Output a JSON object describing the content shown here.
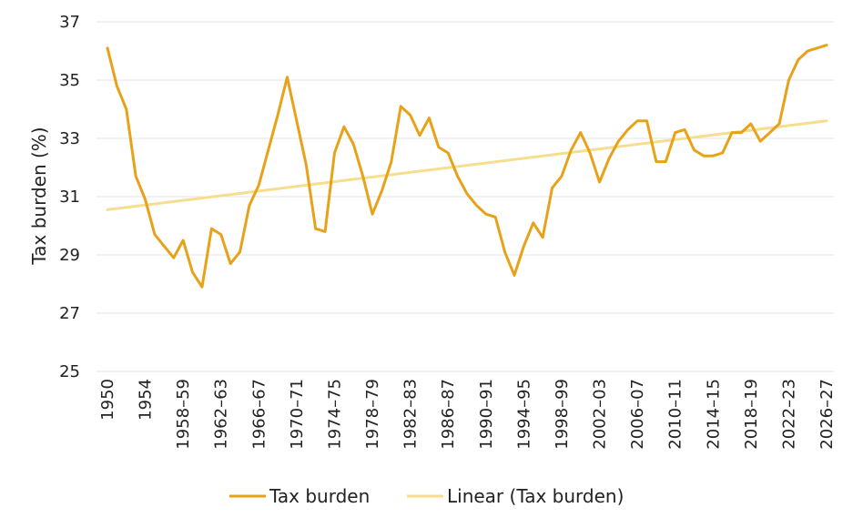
{
  "chart_data": {
    "type": "line",
    "title": "",
    "xlabel": "",
    "ylabel": "Tax burden (%)",
    "ylim": [
      25,
      37
    ],
    "yticks": [
      25,
      27,
      29,
      31,
      33,
      35,
      37
    ],
    "grid": true,
    "legend_position": "bottom",
    "x_tick_labels": [
      "1950",
      "1954",
      "1958–59",
      "1962–63",
      "1966–67",
      "1970–71",
      "1974–75",
      "1978–79",
      "1982–83",
      "1986–87",
      "1990–91",
      "1994–95",
      "1998–99",
      "2002–03",
      "2006–07",
      "2010–11",
      "2014–15",
      "2018–19",
      "2022–23",
      "2026–27"
    ],
    "x_tick_indices": [
      0,
      4,
      8,
      12,
      16,
      20,
      24,
      28,
      32,
      36,
      40,
      44,
      48,
      52,
      56,
      60,
      64,
      68,
      72,
      76
    ],
    "x_count": 77,
    "series": [
      {
        "name": "Tax burden",
        "color": "#E8A21A",
        "values": [
          36.1,
          34.8,
          34.0,
          31.7,
          30.9,
          29.7,
          29.3,
          28.9,
          29.5,
          28.4,
          27.9,
          29.9,
          29.7,
          28.7,
          29.1,
          30.7,
          31.4,
          32.6,
          33.8,
          35.1,
          33.6,
          32.1,
          29.9,
          29.8,
          32.5,
          33.4,
          32.8,
          31.7,
          30.4,
          31.2,
          32.2,
          34.1,
          33.8,
          33.1,
          33.7,
          32.7,
          32.5,
          31.7,
          31.1,
          30.7,
          30.4,
          30.3,
          29.1,
          28.3,
          29.3,
          30.1,
          29.6,
          31.3,
          31.7,
          32.6,
          33.2,
          32.5,
          31.5,
          32.3,
          32.9,
          33.3,
          33.6,
          33.6,
          32.2,
          32.2,
          33.2,
          33.3,
          32.6,
          32.4,
          32.4,
          32.5,
          33.2,
          33.2,
          33.5,
          32.9,
          33.2,
          33.5,
          35.0,
          35.7,
          36.0,
          36.1,
          36.2
        ]
      },
      {
        "name": "Linear (Tax burden)",
        "color": "#F7DD8E",
        "values": [
          30.55,
          33.6
        ],
        "trendline": true
      }
    ]
  }
}
